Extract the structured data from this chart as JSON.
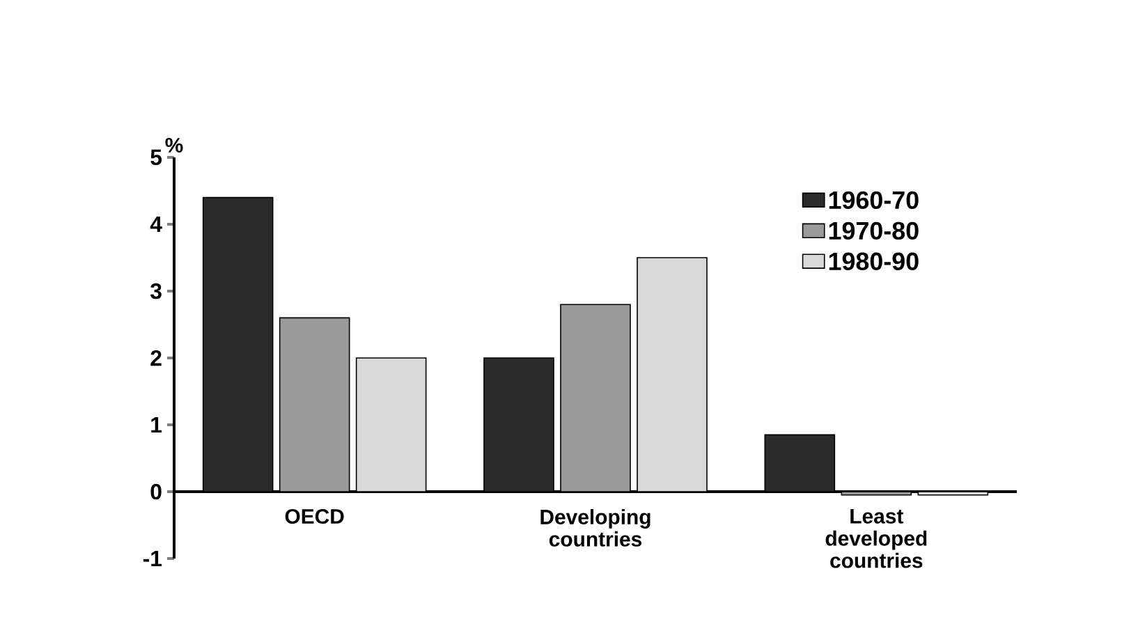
{
  "chart_data": {
    "type": "bar",
    "ylabel": "%",
    "categories": [
      "OECD",
      "Developing countries",
      "Least developed countries"
    ],
    "series": [
      {
        "name": "1960-70",
        "color": "#2b2b2b",
        "values": [
          4.4,
          2.0,
          0.85
        ]
      },
      {
        "name": "1970-80",
        "color": "#9a9a9a",
        "values": [
          2.6,
          2.8,
          -0.05
        ]
      },
      {
        "name": "1980-90",
        "color": "#d8d8d8",
        "values": [
          2.0,
          3.5,
          -0.05
        ]
      }
    ],
    "ylim": [
      -1,
      5
    ],
    "yticks": [
      -1,
      0,
      1,
      2,
      3,
      4,
      5
    ],
    "legend": "top right"
  }
}
